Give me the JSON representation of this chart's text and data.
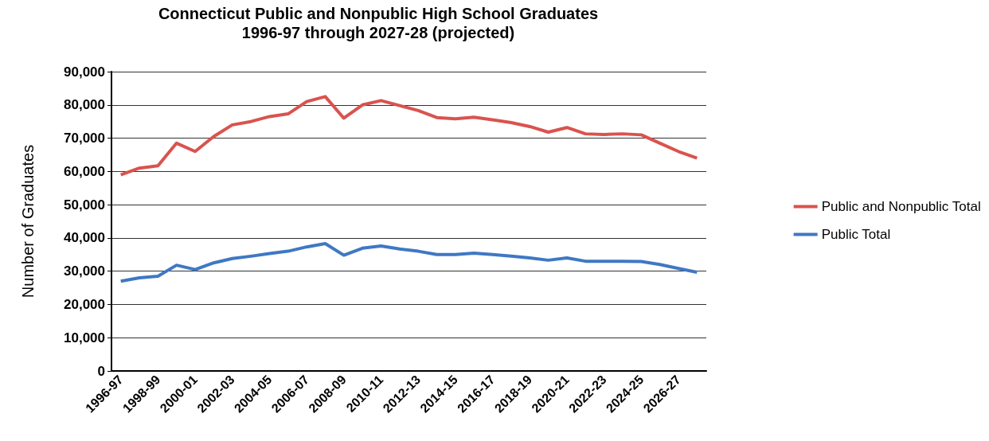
{
  "chart_data": {
    "type": "line",
    "title": "Connecticut Public and Nonpublic High School Graduates\n1996-97 through 2027-28 (projected)",
    "ylabel": "Number of Graduates",
    "categories": [
      "1996-97",
      null,
      "1998-99",
      null,
      "2000-01",
      null,
      "2002-03",
      null,
      "2004-05",
      null,
      "2006-07",
      null,
      "2008-09",
      null,
      "2010-11",
      null,
      "2012-13",
      null,
      "2014-15",
      null,
      "2016-17",
      null,
      "2018-19",
      null,
      "2020-21",
      null,
      "2022-23",
      null,
      "2024-25",
      null,
      "2026-27",
      null
    ],
    "series": [
      {
        "name": "Public and Nonpublic Total",
        "color": "#d9534f",
        "values": [
          59000,
          61000,
          61700,
          68500,
          66000,
          70500,
          74000,
          75000,
          76500,
          77300,
          81000,
          82500,
          76000,
          80000,
          81300,
          79800,
          78300,
          76200,
          75800,
          76300,
          75500,
          74700,
          73500,
          71800,
          73200,
          71300,
          71100,
          71300,
          71000,
          68500,
          66000,
          64000
        ]
      },
      {
        "name": "Public Total",
        "color": "#3f78c4",
        "values": [
          27000,
          28000,
          28500,
          31800,
          30500,
          32500,
          33800,
          34500,
          35300,
          36000,
          37300,
          38300,
          34800,
          36900,
          37600,
          36700,
          36000,
          35000,
          35000,
          35400,
          35000,
          34500,
          34000,
          33300,
          34000,
          33000,
          33000,
          33000,
          32900,
          32000,
          30800,
          29700
        ]
      }
    ],
    "ylim": [
      0,
      90000
    ],
    "yticks": [
      0,
      {
        "value": 10000,
        "label": "10,000"
      },
      {
        "value": 20000,
        "label": "20,000"
      },
      {
        "value": 30000,
        "label": "30,000"
      },
      {
        "value": 40000,
        "label": "40,000"
      },
      {
        "value": 50000,
        "label": "50,000"
      },
      {
        "value": 60000,
        "label": "60,000"
      },
      {
        "value": 70000,
        "label": "70,000"
      },
      {
        "value": 80000,
        "label": "80,000"
      },
      {
        "value": 90000,
        "label": "90,000"
      }
    ],
    "grid": "y",
    "legend": "right",
    "marker": "none",
    "line_style": "solid"
  }
}
